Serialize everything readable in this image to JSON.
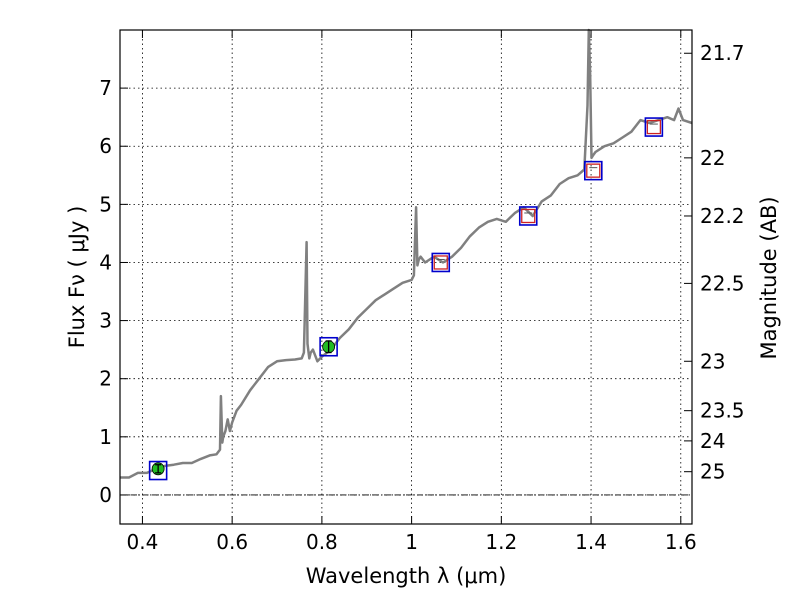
{
  "chart_data": {
    "type": "line",
    "title": "",
    "xlabel": "Wavelength  λ (μm)",
    "ylabel": "Flux  Fν  ( μJy )",
    "ylabel_right": "Magnitude (AB)",
    "xlim": [
      0.35,
      1.625
    ],
    "ylim": [
      -0.5,
      8.0
    ],
    "grid": true,
    "x_ticks": [
      0.4,
      0.6,
      0.8,
      1.0,
      1.2,
      1.4,
      1.6
    ],
    "x_tick_labels": [
      "0.4",
      "0.6",
      "0.8",
      "1",
      "1.2",
      "1.4",
      "1.6"
    ],
    "y_ticks": [
      0,
      1,
      2,
      3,
      4,
      5,
      6,
      7
    ],
    "y_tick_labels": [
      "0",
      "1",
      "2",
      "3",
      "4",
      "5",
      "6",
      "7"
    ],
    "right_ticks": [
      {
        "label": "21.7",
        "flux": 7.6
      },
      {
        "label": "22",
        "flux": 5.8
      },
      {
        "label": "22.2",
        "flux": 4.8
      },
      {
        "label": "22.5",
        "flux": 3.64
      },
      {
        "label": "23",
        "flux": 2.3
      },
      {
        "label": "23.5",
        "flux": 1.45
      },
      {
        "label": "24",
        "flux": 0.93
      },
      {
        "label": "25",
        "flux": 0.4
      }
    ],
    "series": [
      {
        "name": "spectrum",
        "color": "#808080",
        "x": [
          0.35,
          0.37,
          0.39,
          0.41,
          0.43,
          0.45,
          0.47,
          0.49,
          0.51,
          0.53,
          0.55,
          0.565,
          0.573,
          0.575,
          0.578,
          0.58,
          0.585,
          0.59,
          0.595,
          0.6,
          0.61,
          0.62,
          0.64,
          0.66,
          0.68,
          0.7,
          0.72,
          0.74,
          0.755,
          0.76,
          0.766,
          0.768,
          0.772,
          0.775,
          0.78,
          0.79,
          0.8,
          0.82,
          0.84,
          0.86,
          0.88,
          0.9,
          0.92,
          0.94,
          0.96,
          0.98,
          1.0,
          1.005,
          1.01,
          1.013,
          1.016,
          1.02,
          1.03,
          1.05,
          1.07,
          1.09,
          1.11,
          1.13,
          1.15,
          1.17,
          1.19,
          1.21,
          1.23,
          1.25,
          1.27,
          1.29,
          1.31,
          1.33,
          1.35,
          1.37,
          1.385,
          1.392,
          1.395,
          1.398,
          1.401,
          1.405,
          1.41,
          1.43,
          1.45,
          1.47,
          1.49,
          1.51,
          1.53,
          1.55,
          1.57,
          1.585,
          1.595,
          1.605,
          1.625
        ],
        "y": [
          0.3,
          0.3,
          0.38,
          0.38,
          0.45,
          0.5,
          0.52,
          0.55,
          0.55,
          0.62,
          0.68,
          0.7,
          0.78,
          1.7,
          0.9,
          1.0,
          1.1,
          1.3,
          1.1,
          1.25,
          1.45,
          1.55,
          1.8,
          2.0,
          2.2,
          2.3,
          2.32,
          2.33,
          2.35,
          2.45,
          4.35,
          2.6,
          2.35,
          2.45,
          2.5,
          2.3,
          2.38,
          2.5,
          2.7,
          2.85,
          3.05,
          3.2,
          3.35,
          3.45,
          3.55,
          3.65,
          3.7,
          3.78,
          4.95,
          3.95,
          4.05,
          4.1,
          4.0,
          4.1,
          4.0,
          4.1,
          4.25,
          4.45,
          4.6,
          4.7,
          4.75,
          4.7,
          4.85,
          4.95,
          4.8,
          5.05,
          5.15,
          5.35,
          5.45,
          5.5,
          5.6,
          6.7,
          8.0,
          7.2,
          5.8,
          5.85,
          5.9,
          6.0,
          6.05,
          6.15,
          6.25,
          6.45,
          6.4,
          6.45,
          6.5,
          6.45,
          6.65,
          6.45,
          6.4
        ]
      }
    ],
    "photometry_points": [
      {
        "x": 0.435,
        "y": 0.45,
        "err": 0.07,
        "marker": "circle",
        "color": "#22bb22"
      },
      {
        "x": 0.815,
        "y": 2.55,
        "err": 0.1,
        "marker": "circle",
        "color": "#22bb22"
      }
    ],
    "model_points": [
      {
        "x": 0.435,
        "y": 0.42
      },
      {
        "x": 0.815,
        "y": 2.55
      },
      {
        "x": 1.065,
        "y": 4.0
      },
      {
        "x": 1.26,
        "y": 4.8
      },
      {
        "x": 1.405,
        "y": 5.58
      },
      {
        "x": 1.54,
        "y": 6.33
      }
    ],
    "upper_limit_points": [
      {
        "x": 1.065,
        "y": 4.0
      },
      {
        "x": 1.26,
        "y": 4.8
      },
      {
        "x": 1.405,
        "y": 5.58
      },
      {
        "x": 1.54,
        "y": 6.33
      }
    ],
    "colors": {
      "model_box": "#0000cc",
      "limit_box": "#cc2222",
      "spectrum": "#808080",
      "photometry": "#22bb22"
    }
  }
}
